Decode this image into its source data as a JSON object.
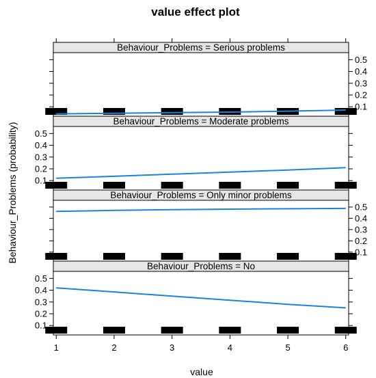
{
  "chart_data": {
    "type": "line",
    "title": "value effect plot",
    "xlabel": "value",
    "ylabel": "Behaviour_Problems (probability)",
    "x": [
      1,
      2,
      3,
      4,
      5,
      6
    ],
    "xlim": [
      0.95,
      6.05
    ],
    "ylim": [
      0.02,
      0.56
    ],
    "yticks": [
      0.1,
      0.2,
      0.3,
      0.4,
      0.5
    ],
    "line_color": "#1a82e6",
    "rug_color": "#000000",
    "strip_color": "#e6e6e6",
    "panels": [
      {
        "strip": "Behaviour_Problems = Serious problems",
        "y": [
          0.04,
          0.045,
          0.05,
          0.055,
          0.063,
          0.072
        ],
        "ytick_side": "right"
      },
      {
        "strip": "Behaviour_Problems = Moderate problems",
        "y": [
          0.12,
          0.137,
          0.155,
          0.172,
          0.19,
          0.21
        ],
        "ytick_side": "left"
      },
      {
        "strip": "Behaviour_Problems = Only minor problems",
        "y": [
          0.462,
          0.47,
          0.476,
          0.481,
          0.485,
          0.488
        ],
        "ytick_side": "right"
      },
      {
        "strip": "Behaviour_Problems = No",
        "y": [
          0.42,
          0.385,
          0.35,
          0.315,
          0.28,
          0.25
        ],
        "ytick_side": "left"
      }
    ]
  }
}
